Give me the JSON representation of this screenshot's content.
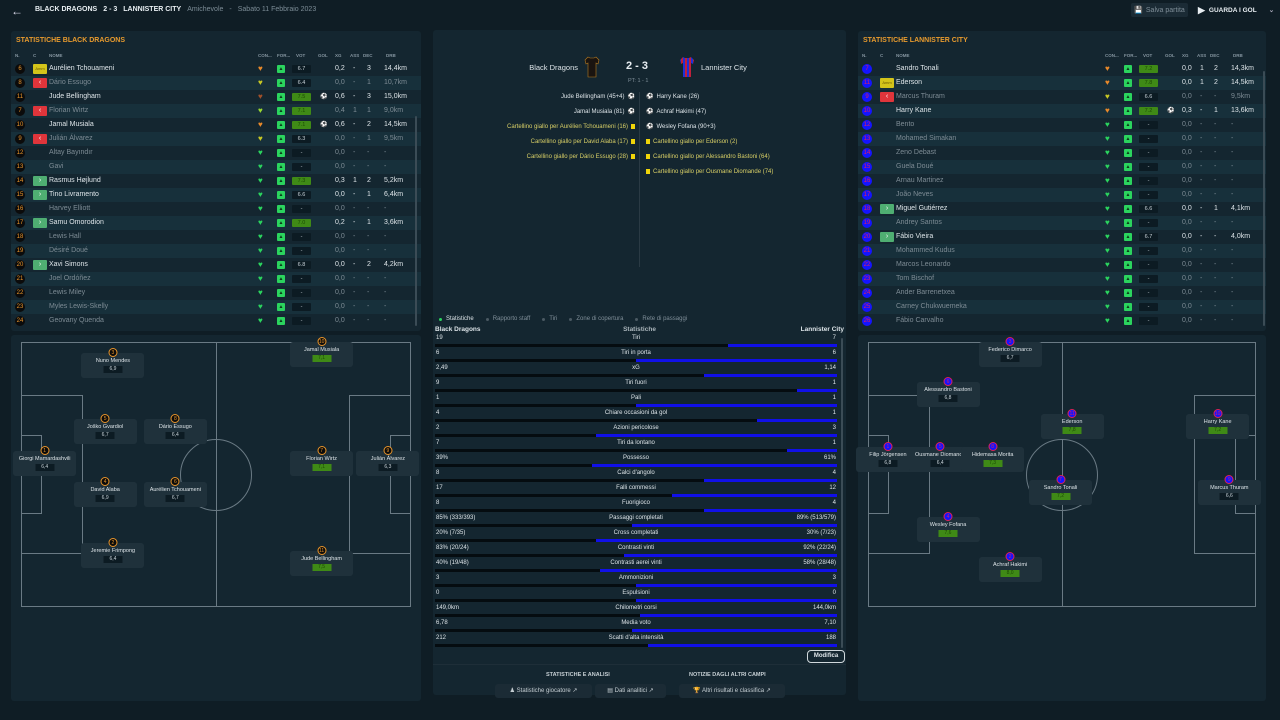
{
  "topbar": {
    "home_team": "BLACK DRAGONS",
    "score": "2 - 3",
    "away_team": "LANNISTER CITY",
    "competition": "Amichevole",
    "separator": "-",
    "date": "Sabato 11 Febbraio 2023",
    "save_label": "Salva partita",
    "watch_label": "GUARDA I GOL"
  },
  "columns": {
    "n": "N.",
    "c": "C",
    "nome": "NOME",
    "con": "CON...",
    "for": "FOR...",
    "vot": "VOT",
    "gol": "GOL",
    "xg": "XG",
    "ass": "ASS",
    "dec": "DEC",
    "drb": "DRB"
  },
  "home_stats": {
    "title": "STATISTICHE BLACK DRAGONS",
    "players": [
      {
        "n": "6",
        "cap": "Amm",
        "name": "Aurélien Tchouameni",
        "cond": "orange",
        "rating": "6.7",
        "good": false,
        "gol": "",
        "xg": "0,2",
        "ass": "-",
        "dec": "3",
        "drb": "14,4km",
        "active": true
      },
      {
        "n": "8",
        "cap": "out",
        "name": "Dário Essugo",
        "cond": "yellow",
        "rating": "6.4",
        "good": false,
        "gol": "",
        "xg": "0,0",
        "ass": "-",
        "dec": "1",
        "drb": "10,7km",
        "active": false
      },
      {
        "n": "11",
        "cap": "",
        "name": "Jude Bellingham",
        "cond": "brown",
        "rating": "7.5",
        "good": true,
        "gol": "goal",
        "xg": "0,6",
        "ass": "-",
        "dec": "3",
        "drb": "15,0km",
        "active": true
      },
      {
        "n": "7",
        "cap": "out",
        "name": "Florian Wirtz",
        "cond": "lime",
        "rating": "7.1",
        "good": true,
        "gol": "",
        "xg": "0,4",
        "ass": "1",
        "dec": "1",
        "drb": "9,0km",
        "active": false
      },
      {
        "n": "10",
        "cap": "",
        "name": "Jamal Musiala",
        "cond": "orange",
        "rating": "7.1",
        "good": true,
        "gol": "goal",
        "xg": "0,6",
        "ass": "-",
        "dec": "2",
        "drb": "14,5km",
        "active": true
      },
      {
        "n": "9",
        "cap": "out",
        "name": "Julián Álvarez",
        "cond": "yellow",
        "rating": "6.3",
        "good": false,
        "gol": "",
        "xg": "0,0",
        "ass": "-",
        "dec": "1",
        "drb": "9,5km",
        "active": false
      },
      {
        "n": "12",
        "cap": "",
        "name": "Altay Bayındır",
        "cond": "green",
        "rating": "-",
        "good": false,
        "gol": "",
        "xg": "0,0",
        "ass": "-",
        "dec": "-",
        "drb": "-",
        "active": false
      },
      {
        "n": "13",
        "cap": "",
        "name": "Gavi",
        "cond": "green",
        "rating": "-",
        "good": false,
        "gol": "",
        "xg": "0,0",
        "ass": "-",
        "dec": "-",
        "drb": "-",
        "active": false
      },
      {
        "n": "14",
        "cap": "in",
        "name": "Rasmus Højlund",
        "cond": "green",
        "rating": "7.3",
        "good": true,
        "gol": "",
        "xg": "0,3",
        "ass": "1",
        "dec": "2",
        "drb": "5,2km",
        "active": true
      },
      {
        "n": "15",
        "cap": "in",
        "name": "Tino Livramento",
        "cond": "green",
        "rating": "6.6",
        "good": false,
        "gol": "",
        "xg": "0,0",
        "ass": "-",
        "dec": "1",
        "drb": "6,4km",
        "active": true
      },
      {
        "n": "16",
        "cap": "",
        "name": "Harvey Elliott",
        "cond": "green",
        "rating": "-",
        "good": false,
        "gol": "",
        "xg": "0,0",
        "ass": "-",
        "dec": "-",
        "drb": "-",
        "active": false
      },
      {
        "n": "17",
        "cap": "in",
        "name": "Samu Omorodion",
        "cond": "green",
        "rating": "7.0",
        "good": true,
        "gol": "",
        "xg": "0,2",
        "ass": "-",
        "dec": "1",
        "drb": "3,6km",
        "active": true
      },
      {
        "n": "18",
        "cap": "",
        "name": "Lewis Hall",
        "cond": "green",
        "rating": "-",
        "good": false,
        "gol": "",
        "xg": "0,0",
        "ass": "-",
        "dec": "-",
        "drb": "-",
        "active": false
      },
      {
        "n": "19",
        "cap": "",
        "name": "Désiré Doué",
        "cond": "green",
        "rating": "-",
        "good": false,
        "gol": "",
        "xg": "0,0",
        "ass": "-",
        "dec": "-",
        "drb": "-",
        "active": false
      },
      {
        "n": "20",
        "cap": "in",
        "name": "Xavi Simons",
        "cond": "green",
        "rating": "6.8",
        "good": false,
        "gol": "",
        "xg": "0,0",
        "ass": "-",
        "dec": "2",
        "drb": "4,2km",
        "active": true
      },
      {
        "n": "21",
        "cap": "",
        "name": "Joel Ordóñez",
        "cond": "green",
        "rating": "-",
        "good": false,
        "gol": "",
        "xg": "0,0",
        "ass": "-",
        "dec": "-",
        "drb": "-",
        "active": false
      },
      {
        "n": "22",
        "cap": "",
        "name": "Lewis Miley",
        "cond": "green",
        "rating": "-",
        "good": false,
        "gol": "",
        "xg": "0,0",
        "ass": "-",
        "dec": "-",
        "drb": "-",
        "active": false
      },
      {
        "n": "23",
        "cap": "",
        "name": "Myles Lewis-Skelly",
        "cond": "green",
        "rating": "-",
        "good": false,
        "gol": "",
        "xg": "0,0",
        "ass": "-",
        "dec": "-",
        "drb": "-",
        "active": false
      },
      {
        "n": "24",
        "cap": "",
        "name": "Geovany Quenda",
        "cond": "green",
        "rating": "-",
        "good": false,
        "gol": "",
        "xg": "0,0",
        "ass": "-",
        "dec": "-",
        "drb": "-",
        "active": false
      }
    ]
  },
  "away_stats": {
    "title": "STATISTICHE LANNISTER CITY",
    "players": [
      {
        "n": "7",
        "cap": "",
        "name": "Sandro Tonali",
        "cond": "orange",
        "rating": "7.2",
        "good": true,
        "gol": "",
        "xg": "0,0",
        "ass": "1",
        "dec": "2",
        "drb": "14,3km",
        "active": true
      },
      {
        "n": "11",
        "cap": "Amm",
        "name": "Ederson",
        "cond": "orange",
        "rating": "7.8",
        "good": true,
        "gol": "",
        "xg": "0,0",
        "ass": "1",
        "dec": "2",
        "drb": "14,5km",
        "active": true
      },
      {
        "n": "9",
        "cap": "out",
        "name": "Marcus Thuram",
        "cond": "yellow",
        "rating": "6.6",
        "good": false,
        "gol": "",
        "xg": "0,0",
        "ass": "-",
        "dec": "-",
        "drb": "9,5km",
        "active": false
      },
      {
        "n": "10",
        "cap": "",
        "name": "Harry Kane",
        "cond": "orange",
        "rating": "7.2",
        "good": true,
        "gol": "goal",
        "xg": "0,3",
        "ass": "-",
        "dec": "1",
        "drb": "13,6km",
        "active": true
      },
      {
        "n": "12",
        "cap": "",
        "name": "Bento",
        "cond": "green",
        "rating": "-",
        "good": false,
        "gol": "",
        "xg": "0,0",
        "ass": "-",
        "dec": "-",
        "drb": "-",
        "active": false
      },
      {
        "n": "13",
        "cap": "",
        "name": "Mohamed Simakan",
        "cond": "green",
        "rating": "-",
        "good": false,
        "gol": "",
        "xg": "0,0",
        "ass": "-",
        "dec": "-",
        "drb": "-",
        "active": false
      },
      {
        "n": "14",
        "cap": "",
        "name": "Zeno Debast",
        "cond": "green",
        "rating": "-",
        "good": false,
        "gol": "",
        "xg": "0,0",
        "ass": "-",
        "dec": "-",
        "drb": "-",
        "active": false
      },
      {
        "n": "15",
        "cap": "",
        "name": "Guela Doué",
        "cond": "green",
        "rating": "-",
        "good": false,
        "gol": "",
        "xg": "0,0",
        "ass": "-",
        "dec": "-",
        "drb": "-",
        "active": false
      },
      {
        "n": "16",
        "cap": "",
        "name": "Arnau Martinez",
        "cond": "green",
        "rating": "-",
        "good": false,
        "gol": "",
        "xg": "0,0",
        "ass": "-",
        "dec": "-",
        "drb": "-",
        "active": false
      },
      {
        "n": "17",
        "cap": "",
        "name": "João Neves",
        "cond": "green",
        "rating": "-",
        "good": false,
        "gol": "",
        "xg": "0,0",
        "ass": "-",
        "dec": "-",
        "drb": "-",
        "active": false
      },
      {
        "n": "18",
        "cap": "in",
        "name": "Miguel Gutiérrez",
        "cond": "green",
        "rating": "6.6",
        "good": false,
        "gol": "",
        "xg": "0,0",
        "ass": "-",
        "dec": "1",
        "drb": "4,1km",
        "active": true
      },
      {
        "n": "19",
        "cap": "",
        "name": "Andrey Santos",
        "cond": "green",
        "rating": "-",
        "good": false,
        "gol": "",
        "xg": "0,0",
        "ass": "-",
        "dec": "-",
        "drb": "-",
        "active": false
      },
      {
        "n": "20",
        "cap": "in",
        "name": "Fábio Vieira",
        "cond": "green",
        "rating": "6.7",
        "good": false,
        "gol": "",
        "xg": "0,0",
        "ass": "-",
        "dec": "-",
        "drb": "4,0km",
        "active": true
      },
      {
        "n": "21",
        "cap": "",
        "name": "Mohammed Kudus",
        "cond": "green",
        "rating": "-",
        "good": false,
        "gol": "",
        "xg": "0,0",
        "ass": "-",
        "dec": "-",
        "drb": "-",
        "active": false
      },
      {
        "n": "22",
        "cap": "",
        "name": "Marcos Leonardo",
        "cond": "green",
        "rating": "-",
        "good": false,
        "gol": "",
        "xg": "0,0",
        "ass": "-",
        "dec": "-",
        "drb": "-",
        "active": false
      },
      {
        "n": "23",
        "cap": "",
        "name": "Tom Bischof",
        "cond": "green",
        "rating": "-",
        "good": false,
        "gol": "",
        "xg": "0,0",
        "ass": "-",
        "dec": "-",
        "drb": "-",
        "active": false
      },
      {
        "n": "24",
        "cap": "",
        "name": "Ander Barrenetxea",
        "cond": "green",
        "rating": "-",
        "good": false,
        "gol": "",
        "xg": "0,0",
        "ass": "-",
        "dec": "-",
        "drb": "-",
        "active": false
      },
      {
        "n": "25",
        "cap": "",
        "name": "Carney Chukwuemeka",
        "cond": "green",
        "rating": "-",
        "good": false,
        "gol": "",
        "xg": "0,0",
        "ass": "-",
        "dec": "-",
        "drb": "-",
        "active": false
      },
      {
        "n": "26",
        "cap": "",
        "name": "Fábio Carvalho",
        "cond": "green",
        "rating": "-",
        "good": false,
        "gol": "",
        "xg": "0,0",
        "ass": "-",
        "dec": "-",
        "drb": "-",
        "active": false
      }
    ]
  },
  "home_lineup": [
    {
      "n": "3",
      "name": "Nuno Mendes",
      "rating": "6,9",
      "good": false,
      "fx": 0.155,
      "fy": 0.04
    },
    {
      "n": "10",
      "name": "Jamal Musiala",
      "rating": "7,1",
      "good": true,
      "fx": 0.69,
      "fy": 0.0
    },
    {
      "n": "5",
      "name": "Joško Gvardiol",
      "rating": "6,7",
      "good": false,
      "fx": 0.135,
      "fy": 0.29
    },
    {
      "n": "8",
      "name": "Dário Essugo",
      "rating": "6,4",
      "good": false,
      "fx": 0.315,
      "fy": 0.29
    },
    {
      "n": "1",
      "name": "Giorgi Mamardashvili",
      "rating": "6,4",
      "good": false,
      "fx": -0.02,
      "fy": 0.41
    },
    {
      "n": "7",
      "name": "Florian Wirtz",
      "rating": "7,1",
      "good": true,
      "fx": 0.69,
      "fy": 0.41
    },
    {
      "n": "9",
      "name": "Julián Álvarez",
      "rating": "6,3",
      "good": false,
      "fx": 0.86,
      "fy": 0.41
    },
    {
      "n": "4",
      "name": "David Alaba",
      "rating": "6,9",
      "good": false,
      "fx": 0.135,
      "fy": 0.53
    },
    {
      "n": "6",
      "name": "Aurélien Tchouameni",
      "rating": "6,7",
      "good": false,
      "fx": 0.315,
      "fy": 0.53
    },
    {
      "n": "2",
      "name": "Jeremie Frimpong",
      "rating": "6,4",
      "good": false,
      "fx": 0.155,
      "fy": 0.76
    },
    {
      "n": "11",
      "name": "Jude Bellingham",
      "rating": "7,5",
      "good": true,
      "fx": 0.69,
      "fy": 0.79
    }
  ],
  "away_lineup": [
    {
      "n": "3",
      "name": "Federico Dimarco",
      "rating": "6,7",
      "good": false,
      "fx": 0.285,
      "fy": 0.0
    },
    {
      "n": "6",
      "name": "Alessandro Bastoni",
      "rating": "6,8",
      "good": false,
      "fx": 0.125,
      "fy": 0.15
    },
    {
      "n": "11",
      "name": "Ederson",
      "rating": "7,8",
      "good": true,
      "fx": 0.445,
      "fy": 0.27
    },
    {
      "n": "10",
      "name": "Harry Kane",
      "rating": "7,2",
      "good": true,
      "fx": 0.82,
      "fy": 0.27
    },
    {
      "n": "1",
      "name": "Filip Jörgensen",
      "rating": "6,8",
      "good": false,
      "fx": -0.03,
      "fy": 0.395
    },
    {
      "n": "5",
      "name": "Ousmane Diomande",
      "rating": "6,4",
      "good": false,
      "fx": 0.105,
      "fy": 0.395
    },
    {
      "n": "8",
      "name": "Hidemasa Morita",
      "rating": "7,3",
      "good": true,
      "fx": 0.24,
      "fy": 0.395
    },
    {
      "n": "7",
      "name": "Sandro Tonali",
      "rating": "7,2",
      "good": true,
      "fx": 0.415,
      "fy": 0.52
    },
    {
      "n": "9",
      "name": "Marcus Thuram",
      "rating": "6,6",
      "good": false,
      "fx": 0.85,
      "fy": 0.52
    },
    {
      "n": "4",
      "name": "Wesley Fofana",
      "rating": "7,6",
      "good": true,
      "fx": 0.125,
      "fy": 0.66
    },
    {
      "n": "2",
      "name": "Achraf Hakimi",
      "rating": "8,0",
      "good": true,
      "fx": 0.285,
      "fy": 0.81
    }
  ],
  "scoreboard": {
    "home": "Black Dragons",
    "away": "Lannister City",
    "score": "2 - 3",
    "half_time": "PT: 1 - 1",
    "home_events": [
      {
        "text": "Jude Bellingham (45+4)",
        "type": "goal"
      },
      {
        "text": "Jamal Musiala (81)",
        "type": "goal"
      },
      {
        "text": "Cartellino giallo per Aurélien Tchouameni (16)",
        "type": "card"
      },
      {
        "text": "Cartellino giallo per David Alaba (17)",
        "type": "card"
      },
      {
        "text": "Cartellino giallo per Dário Essugo (28)",
        "type": "card"
      }
    ],
    "away_events": [
      {
        "text": "Harry Kane (26)",
        "type": "goal"
      },
      {
        "text": "Achraf Hakimi (47)",
        "type": "goal"
      },
      {
        "text": "Wesley Fofana (90+3)",
        "type": "goal"
      },
      {
        "text": "Cartellino giallo per Ederson (2)",
        "type": "card"
      },
      {
        "text": "Cartellino giallo per Alessandro Bastoni (64)",
        "type": "card"
      },
      {
        "text": "Cartellino giallo per Ousmane Diomande (74)",
        "type": "card"
      }
    ]
  },
  "tabs": [
    "Statistiche",
    "Rapporto staff",
    "Tiri",
    "Zone di copertura",
    "Rete di passaggi"
  ],
  "stats_header": {
    "home": "Black Dragons",
    "middle": "Statistiche",
    "away": "Lannister City"
  },
  "stats": [
    {
      "label": "Tiri",
      "home": "19",
      "away": "7",
      "away_share": 0.27
    },
    {
      "label": "Tiri in porta",
      "home": "6",
      "away": "6",
      "away_share": 0.5
    },
    {
      "label": "xG",
      "home": "2,49",
      "away": "1,14",
      "away_share": 0.33
    },
    {
      "label": "Tiri fuori",
      "home": "9",
      "away": "1",
      "away_share": 0.1
    },
    {
      "label": "Pali",
      "home": "1",
      "away": "1",
      "away_share": 0.5
    },
    {
      "label": "Chiare occasioni da gol",
      "home": "4",
      "away": "1",
      "away_share": 0.2
    },
    {
      "label": "Azioni pericolose",
      "home": "2",
      "away": "3",
      "away_share": 0.6
    },
    {
      "label": "Tiri da lontano",
      "home": "7",
      "away": "1",
      "away_share": 0.125
    },
    {
      "label": "Possesso",
      "home": "39%",
      "away": "61%",
      "away_share": 0.61
    },
    {
      "label": "Calci d'angolo",
      "home": "8",
      "away": "4",
      "away_share": 0.33
    },
    {
      "label": "Falli commessi",
      "home": "17",
      "away": "12",
      "away_share": 0.41
    },
    {
      "label": "Fuorigioco",
      "home": "8",
      "away": "4",
      "away_share": 0.33
    },
    {
      "label": "Passaggi completati",
      "home": "85% (333/393)",
      "away": "89% (513/579)",
      "away_share": 0.51
    },
    {
      "label": "Cross completati",
      "home": "20% (7/35)",
      "away": "30% (7/23)",
      "away_share": 0.6
    },
    {
      "label": "Contrasti vinti",
      "home": "83% (20/24)",
      "away": "92% (22/24)",
      "away_share": 0.53
    },
    {
      "label": "Contrasti aerei vinti",
      "home": "40% (19/48)",
      "away": "58% (28/48)",
      "away_share": 0.59
    },
    {
      "label": "Ammonizioni",
      "home": "3",
      "away": "3",
      "away_share": 0.5
    },
    {
      "label": "Espulsioni",
      "home": "0",
      "away": "0",
      "away_share": 0.5
    },
    {
      "label": "Chilometri corsi",
      "home": "149,0km",
      "away": "144,0km",
      "away_share": 0.49
    },
    {
      "label": "Media voto",
      "home": "6,78",
      "away": "7,10",
      "away_share": 0.51
    },
    {
      "label": "Scatti d'alta intensità",
      "home": "212",
      "away": "188",
      "away_share": 0.47
    }
  ],
  "modifica_label": "Modifica",
  "bottom": {
    "section1": "STATISTICHE E ANALISI",
    "section2": "NOTIZIE DAGLI ALTRI CAMPI",
    "btn_player_stats": "Statistiche giocatore",
    "btn_analytics": "Dati analitici",
    "btn_other_results": "Altri risultati e classifica"
  },
  "colors": {
    "accent": "#e89b2e",
    "home_badge": "#0b0b0b",
    "away_badge": "#1414ff",
    "away_bar": "#1010e8",
    "good_rating": "#3f8a16",
    "form_green": "#2bd45e"
  }
}
